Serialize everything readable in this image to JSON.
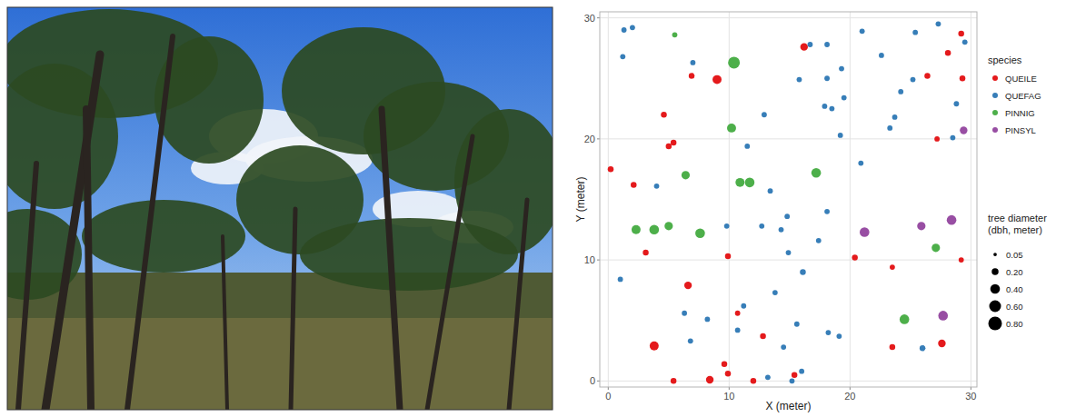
{
  "chart_data": {
    "type": "scatter",
    "xlabel": "X (meter)",
    "ylabel": "Y (meter)",
    "xlim": [
      -0.7,
      30.5
    ],
    "ylim": [
      -0.5,
      30.5
    ],
    "xticks": [
      0,
      10,
      20,
      30
    ],
    "yticks": [
      0,
      10,
      20,
      30
    ],
    "grid": true,
    "legend": "right",
    "legend_title": "species",
    "marker": "circle",
    "series": [
      {
        "name": "QUEILE",
        "color": "#e41a1c",
        "x": [
          0.2,
          2.1,
          3.1,
          3.8,
          4.6,
          5.0,
          5.4,
          6.9,
          9.0,
          6.6,
          5.4,
          8.4,
          9.6,
          9.9,
          9.9,
          10.7,
          12.0,
          12.8,
          15.4,
          16.2,
          20.4,
          23.5,
          23.5,
          26.4,
          27.2,
          27.6,
          28.1,
          29.2,
          29.3,
          29.2
        ],
        "values": [
          17.5,
          16.2,
          10.6,
          2.9,
          22.0,
          19.4,
          19.7,
          25.2,
          24.9,
          7.9,
          0.0,
          0.1,
          1.4,
          0.6,
          10.3,
          5.6,
          0.0,
          3.7,
          0.5,
          27.6,
          10.2,
          9.4,
          2.8,
          25.2,
          20.0,
          3.1,
          27.1,
          28.7,
          25.0,
          10.0
        ],
        "sizes": [
          0.15,
          0.15,
          0.15,
          0.35,
          0.15,
          0.15,
          0.15,
          0.15,
          0.35,
          0.25,
          0.15,
          0.25,
          0.15,
          0.15,
          0.15,
          0.12,
          0.15,
          0.15,
          0.15,
          0.25,
          0.15,
          0.12,
          0.15,
          0.15,
          0.12,
          0.25,
          0.15,
          0.15,
          0.15,
          0.12
        ]
      },
      {
        "name": "QUEFAG",
        "color": "#377eb8",
        "x": [
          1.3,
          2.0,
          1.2,
          7.0,
          4.0,
          1.0,
          6.3,
          6.8,
          8.2,
          9.8,
          10.7,
          11.2,
          11.5,
          12.7,
          12.9,
          13.4,
          13.2,
          13.8,
          14.3,
          14.5,
          14.8,
          14.9,
          15.2,
          15.6,
          15.8,
          16.1,
          16.0,
          16.7,
          17.4,
          18.1,
          18.1,
          18.1,
          17.9,
          18.5,
          19.3,
          19.5,
          18.2,
          19.1,
          19.2,
          20.9,
          21.0,
          22.6,
          23.3,
          23.7,
          24.2,
          25.2,
          25.4,
          26.0,
          27.3,
          28.5,
          28.8,
          29.5
        ],
        "values": [
          29.0,
          29.2,
          26.8,
          26.3,
          16.1,
          8.4,
          5.6,
          3.3,
          5.1,
          12.8,
          4.2,
          6.2,
          19.4,
          12.8,
          22.0,
          15.7,
          0.3,
          7.3,
          12.5,
          2.8,
          13.6,
          10.6,
          0.0,
          4.7,
          24.9,
          9.0,
          0.8,
          27.8,
          11.6,
          27.8,
          25.0,
          14.0,
          22.7,
          22.5,
          25.8,
          23.4,
          4.0,
          3.7,
          20.3,
          18.0,
          28.9,
          26.9,
          20.9,
          21.8,
          23.9,
          24.9,
          28.8,
          2.7,
          29.5,
          20.1,
          22.9,
          28.0
        ],
        "sizes": [
          0.12,
          0.12,
          0.12,
          0.12,
          0.12,
          0.12,
          0.12,
          0.12,
          0.12,
          0.12,
          0.12,
          0.12,
          0.12,
          0.12,
          0.12,
          0.12,
          0.12,
          0.12,
          0.12,
          0.12,
          0.12,
          0.12,
          0.12,
          0.12,
          0.12,
          0.15,
          0.12,
          0.12,
          0.12,
          0.12,
          0.12,
          0.12,
          0.12,
          0.12,
          0.12,
          0.12,
          0.12,
          0.12,
          0.12,
          0.12,
          0.12,
          0.12,
          0.12,
          0.12,
          0.12,
          0.12,
          0.12,
          0.15,
          0.12,
          0.12,
          0.12,
          0.12
        ]
      },
      {
        "name": "PINNIG",
        "color": "#4daf4a",
        "x": [
          5.5,
          10.4,
          10.2,
          6.4,
          10.9,
          11.7,
          17.2,
          2.3,
          3.8,
          5.0,
          7.6,
          27.1,
          24.5
        ],
        "values": [
          28.6,
          26.3,
          20.9,
          17.0,
          16.4,
          16.4,
          17.2,
          12.5,
          12.5,
          12.8,
          12.2,
          11.0,
          5.1
        ],
        "sizes": [
          0.12,
          0.6,
          0.35,
          0.3,
          0.35,
          0.4,
          0.4,
          0.35,
          0.4,
          0.3,
          0.4,
          0.3,
          0.4
        ]
      },
      {
        "name": "PINSYL",
        "color": "#984ea3",
        "x": [
          29.4,
          21.2,
          25.9,
          28.4,
          27.7
        ],
        "values": [
          20.7,
          12.3,
          12.8,
          13.3,
          5.4
        ],
        "sizes": [
          0.25,
          0.4,
          0.3,
          0.4,
          0.4
        ]
      }
    ],
    "size_legend": {
      "title": [
        "tree diameter",
        "(dbh, meter)"
      ],
      "values": [
        0.05,
        {
          "value": 0.2,
          "label": "0.20"
        },
        {
          "value": 0.4,
          "label": "0.40"
        },
        {
          "value": 0.6,
          "label": "0.60"
        },
        {
          "value": 0.8,
          "label": "0.80"
        }
      ]
    }
  }
}
